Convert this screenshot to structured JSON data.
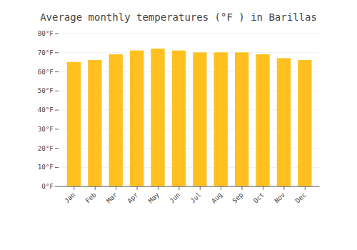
{
  "chart_data": {
    "type": "bar",
    "title": "Average monthly temperatures (°F ) in Barillas",
    "categories": [
      "Jan",
      "Feb",
      "Mar",
      "Apr",
      "May",
      "Jun",
      "Jul",
      "Aug",
      "Sep",
      "Oct",
      "Nov",
      "Dec"
    ],
    "values": [
      65,
      66,
      69,
      71,
      72,
      71,
      70,
      70,
      70,
      69,
      67,
      66
    ],
    "color": "#FFC020",
    "ylim": [
      0,
      80
    ],
    "yticks": [
      {
        "value": 0,
        "label": "0°F"
      },
      {
        "value": 10,
        "label": "10°F"
      },
      {
        "value": 20,
        "label": "20°F"
      },
      {
        "value": 30,
        "label": "30°F"
      },
      {
        "value": 40,
        "label": "40°F"
      },
      {
        "value": 50,
        "label": "50°F"
      },
      {
        "value": 60,
        "label": "60°F"
      },
      {
        "value": 70,
        "label": "70°F"
      },
      {
        "value": 80,
        "label": "80°F"
      }
    ],
    "grid": true
  }
}
